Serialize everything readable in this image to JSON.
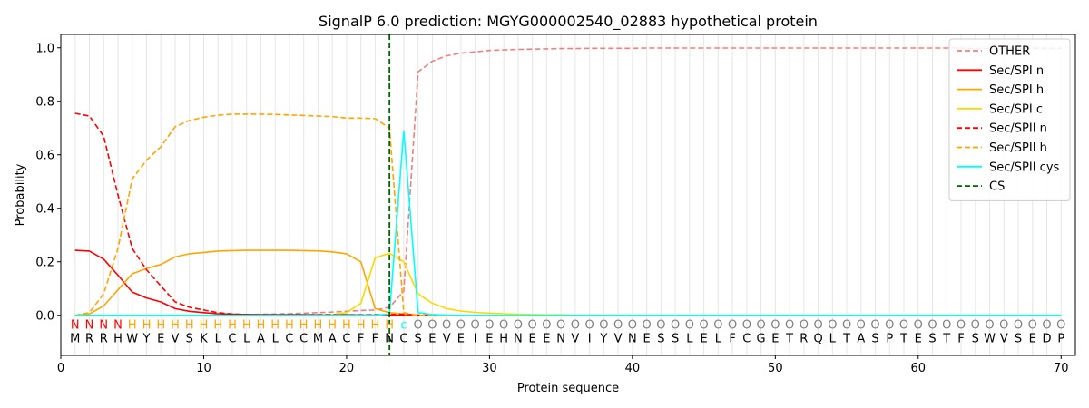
{
  "chart_data": {
    "type": "line",
    "title": "SignalP 6.0 prediction: MGYG000002540_02883 hypothetical protein",
    "xlabel": "Protein sequence",
    "ylabel": "Probability",
    "xlim": [
      0,
      71
    ],
    "ylim": [
      -0.15,
      1.05
    ],
    "x_ticks": [
      0,
      10,
      20,
      30,
      40,
      50,
      60,
      70
    ],
    "y_ticks": [
      0.0,
      0.2,
      0.4,
      0.6,
      0.8,
      1.0
    ],
    "x_tick_labels": [
      "0",
      "10",
      "20",
      "30",
      "40",
      "50",
      "60",
      "70"
    ],
    "y_tick_labels": [
      "0.0",
      "0.2",
      "0.4",
      "0.6",
      "0.8",
      "1.0"
    ],
    "grid": "vertical lines at each residue",
    "legend_position": "top-right",
    "cleavage_site": 23,
    "sequence": [
      "M",
      "R",
      "R",
      "H",
      "W",
      "Y",
      "E",
      "V",
      "S",
      "K",
      "L",
      "C",
      "L",
      "A",
      "L",
      "C",
      "C",
      "M",
      "A",
      "C",
      "F",
      "F",
      "N",
      "C",
      "S",
      "E",
      "V",
      "E",
      "I",
      "E",
      "H",
      "N",
      "E",
      "E",
      "N",
      "V",
      "I",
      "Y",
      "V",
      "N",
      "E",
      "S",
      "S",
      "L",
      "E",
      "L",
      "F",
      "C",
      "G",
      "E",
      "T",
      "R",
      "Q",
      "L",
      "T",
      "A",
      "S",
      "P",
      "T",
      "E",
      "S",
      "T",
      "F",
      "S",
      "W",
      "V",
      "S",
      "E",
      "D",
      "P"
    ],
    "region_labels": [
      "N",
      "N",
      "N",
      "N",
      "H",
      "H",
      "H",
      "H",
      "H",
      "H",
      "H",
      "H",
      "H",
      "H",
      "H",
      "H",
      "H",
      "H",
      "H",
      "H",
      "H",
      "H",
      "H",
      "c",
      "O",
      "O",
      "O",
      "O",
      "O",
      "O",
      "O",
      "O",
      "O",
      "O",
      "O",
      "O",
      "O",
      "O",
      "O",
      "O",
      "O",
      "O",
      "O",
      "O",
      "O",
      "O",
      "O",
      "O",
      "O",
      "O",
      "O",
      "O",
      "O",
      "O",
      "O",
      "O",
      "O",
      "O",
      "O",
      "O",
      "O",
      "O",
      "O",
      "O",
      "O",
      "O",
      "O",
      "O",
      "O",
      "O"
    ],
    "region_colors": {
      "N": "#ff0000",
      "H": "#ffa500",
      "c": "#00ffff",
      "O": "#808080"
    },
    "series": [
      {
        "name": "OTHER",
        "color": "#f08080",
        "dash": true,
        "values": [
          0.0,
          0.0,
          0.0,
          0.0,
          0.0,
          0.0,
          0.0,
          0.0,
          0.0,
          0.0,
          0.001,
          0.002,
          0.003,
          0.004,
          0.005,
          0.006,
          0.008,
          0.01,
          0.012,
          0.015,
          0.018,
          0.02,
          0.03,
          0.09,
          0.91,
          0.95,
          0.97,
          0.98,
          0.985,
          0.99,
          0.992,
          0.994,
          0.995,
          0.996,
          0.997,
          0.997,
          0.998,
          0.998,
          0.998,
          0.998,
          0.999,
          0.999,
          0.999,
          0.999,
          0.999,
          0.999,
          0.999,
          0.999,
          0.999,
          0.999,
          0.999,
          0.999,
          0.999,
          0.999,
          0.999,
          0.999,
          0.999,
          0.999,
          0.999,
          0.999,
          0.999,
          0.999,
          0.999,
          0.998,
          0.998,
          0.998,
          0.998,
          0.998,
          0.998,
          0.998
        ]
      },
      {
        "name": "Sec/SPI n",
        "color": "#ff0000",
        "dash": false,
        "values": [
          0.243,
          0.24,
          0.21,
          0.15,
          0.087,
          0.065,
          0.05,
          0.025,
          0.015,
          0.01,
          0.006,
          0.004,
          0.003,
          0.002,
          0.002,
          0.002,
          0.002,
          0.002,
          0.002,
          0.002,
          0.001,
          0.001,
          0.0,
          0.0,
          0.0,
          0.0,
          0.0,
          0.0,
          0.0,
          0.0,
          0.0,
          0.0,
          0.0,
          0.0,
          0.0,
          0.0,
          0.0,
          0.0,
          0.0,
          0.0,
          0.0,
          0.0,
          0.0,
          0.0,
          0.0,
          0.0,
          0.0,
          0.0,
          0.0,
          0.0,
          0.0,
          0.0,
          0.0,
          0.0,
          0.0,
          0.0,
          0.0,
          0.0,
          0.0,
          0.0,
          0.0,
          0.0,
          0.0,
          0.0,
          0.0,
          0.0,
          0.0,
          0.0,
          0.0,
          0.0
        ]
      },
      {
        "name": "Sec/SPI h",
        "color": "#ffa500",
        "dash": false,
        "values": [
          0.0,
          0.005,
          0.035,
          0.095,
          0.155,
          0.175,
          0.19,
          0.218,
          0.23,
          0.235,
          0.24,
          0.242,
          0.243,
          0.243,
          0.243,
          0.243,
          0.242,
          0.241,
          0.237,
          0.23,
          0.2,
          0.025,
          0.01,
          0.005,
          0.0,
          0.0,
          0.0,
          0.0,
          0.0,
          0.0,
          0.0,
          0.0,
          0.0,
          0.0,
          0.0,
          0.0,
          0.0,
          0.0,
          0.0,
          0.0,
          0.0,
          0.0,
          0.0,
          0.0,
          0.0,
          0.0,
          0.0,
          0.0,
          0.0,
          0.0,
          0.0,
          0.0,
          0.0,
          0.0,
          0.0,
          0.0,
          0.0,
          0.0,
          0.0,
          0.0,
          0.0,
          0.0,
          0.0,
          0.0,
          0.0,
          0.0,
          0.0,
          0.0,
          0.0,
          0.0
        ]
      },
      {
        "name": "Sec/SPI c",
        "color": "#ffd700",
        "dash": false,
        "values": [
          0.0,
          0.0,
          0.0,
          0.0,
          0.0,
          0.0,
          0.0,
          0.0,
          0.0,
          0.0,
          0.0,
          0.0,
          0.0,
          0.0,
          0.0,
          0.0,
          0.0,
          0.001,
          0.003,
          0.01,
          0.045,
          0.215,
          0.232,
          0.2,
          0.08,
          0.045,
          0.025,
          0.016,
          0.011,
          0.008,
          0.006,
          0.004,
          0.003,
          0.002,
          0.002,
          0.001,
          0.001,
          0.001,
          0.001,
          0.0,
          0.0,
          0.0,
          0.0,
          0.0,
          0.0,
          0.0,
          0.0,
          0.0,
          0.0,
          0.0,
          0.0,
          0.0,
          0.0,
          0.0,
          0.0,
          0.0,
          0.0,
          0.0,
          0.0,
          0.0,
          0.0,
          0.0,
          0.0,
          0.0,
          0.0,
          0.0,
          0.0,
          0.0,
          0.0,
          0.0
        ]
      },
      {
        "name": "Sec/SPII n",
        "color": "#ff0000",
        "dash": true,
        "values": [
          0.755,
          0.745,
          0.67,
          0.45,
          0.25,
          0.17,
          0.11,
          0.05,
          0.03,
          0.02,
          0.01,
          0.005,
          0.003,
          0.002,
          0.002,
          0.002,
          0.002,
          0.002,
          0.002,
          0.002,
          0.002,
          0.002,
          0.003,
          0.004,
          0.001,
          0.0,
          0.0,
          0.0,
          0.0,
          0.0,
          0.0,
          0.0,
          0.0,
          0.0,
          0.0,
          0.0,
          0.0,
          0.0,
          0.0,
          0.0,
          0.0,
          0.0,
          0.0,
          0.0,
          0.0,
          0.0,
          0.0,
          0.0,
          0.0,
          0.0,
          0.0,
          0.0,
          0.0,
          0.0,
          0.0,
          0.0,
          0.0,
          0.0,
          0.0,
          0.0,
          0.0,
          0.0,
          0.0,
          0.0,
          0.0,
          0.0,
          0.0,
          0.0,
          0.0,
          0.0
        ]
      },
      {
        "name": "Sec/SPII h",
        "color": "#ffa500",
        "dash": true,
        "values": [
          0.0,
          0.01,
          0.08,
          0.25,
          0.51,
          0.58,
          0.63,
          0.705,
          0.728,
          0.74,
          0.748,
          0.752,
          0.752,
          0.752,
          0.751,
          0.749,
          0.747,
          0.745,
          0.743,
          0.737,
          0.737,
          0.735,
          0.7,
          0.01,
          0.0,
          0.0,
          0.0,
          0.0,
          0.0,
          0.0,
          0.0,
          0.0,
          0.0,
          0.0,
          0.0,
          0.0,
          0.0,
          0.0,
          0.0,
          0.0,
          0.0,
          0.0,
          0.0,
          0.0,
          0.0,
          0.0,
          0.0,
          0.0,
          0.0,
          0.0,
          0.0,
          0.0,
          0.0,
          0.0,
          0.0,
          0.0,
          0.0,
          0.0,
          0.0,
          0.0,
          0.0,
          0.0,
          0.0,
          0.0,
          0.0,
          0.0,
          0.0,
          0.0,
          0.0,
          0.0
        ]
      },
      {
        "name": "Sec/SPII cys",
        "color": "#00ffff",
        "dash": false,
        "values": [
          0.0,
          0.0,
          0.0,
          0.0,
          0.0,
          0.0,
          0.0,
          0.0,
          0.0,
          0.0,
          0.0,
          0.0,
          0.0,
          0.0,
          0.0,
          0.0,
          0.0,
          0.0,
          0.0,
          0.0,
          0.0,
          0.0,
          0.005,
          0.69,
          0.01,
          0.003,
          0.001,
          0.0,
          0.0,
          0.0,
          0.0,
          0.0,
          0.0,
          0.0,
          0.0,
          0.0,
          0.0,
          0.0,
          0.0,
          0.0,
          0.0,
          0.0,
          0.0,
          0.0,
          0.0,
          0.0,
          0.0,
          0.0,
          0.0,
          0.0,
          0.0,
          0.0,
          0.0,
          0.0,
          0.0,
          0.0,
          0.0,
          0.0,
          0.0,
          0.0,
          0.0,
          0.0,
          0.0,
          0.0,
          0.0,
          0.0,
          0.0,
          0.0,
          0.0,
          0.0
        ]
      }
    ],
    "cs_line": {
      "name": "CS",
      "color": "#006400",
      "dash": true
    }
  }
}
